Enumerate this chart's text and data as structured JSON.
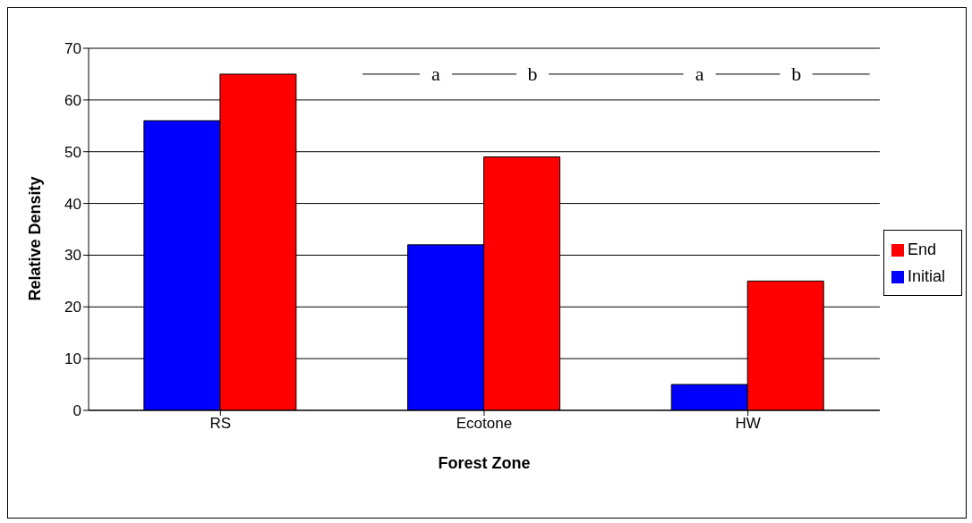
{
  "chart_data": {
    "type": "bar",
    "xlabel": "Forest Zone",
    "ylabel": "Relative Density",
    "categories": [
      "RS",
      "Ecotone",
      "HW"
    ],
    "series": [
      {
        "name": "Initial",
        "color": "#0000ff",
        "values": [
          56,
          32,
          5
        ]
      },
      {
        "name": "End",
        "color": "#ff0000",
        "values": [
          65,
          49,
          25
        ]
      }
    ],
    "ylim": [
      0,
      70
    ],
    "yticks": [
      0,
      10,
      20,
      30,
      40,
      50,
      60,
      70
    ],
    "grid": "y",
    "legend": "right",
    "ref_lines": [
      {
        "axis": "y",
        "value": 65
      }
    ],
    "annotations": [
      {
        "text": "a",
        "x": "Ecotone",
        "y": 65
      },
      {
        "text": "b",
        "x": "Ecotone",
        "y": 65
      },
      {
        "text": "a",
        "x": "HW",
        "y": 65
      },
      {
        "text": "b",
        "x": "HW",
        "y": 65
      }
    ]
  }
}
